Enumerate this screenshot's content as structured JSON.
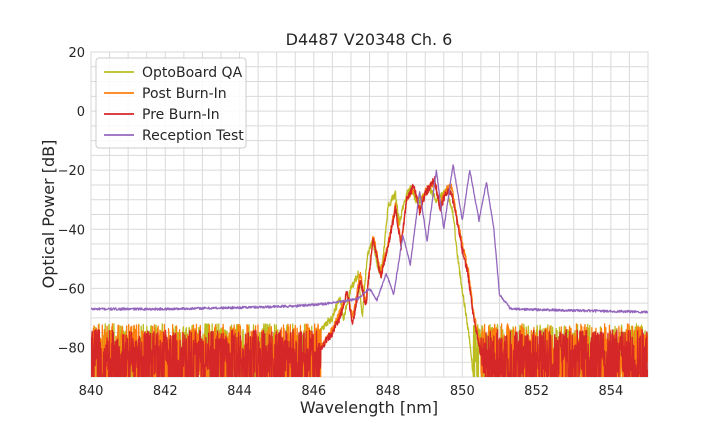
{
  "chart_data": {
    "type": "line",
    "title": "D4487 V20348 Ch. 6",
    "xlabel": "Wavelength [nm]",
    "ylabel": "Optical Power [dB]",
    "xlim": [
      840,
      855
    ],
    "ylim": [
      -90,
      20
    ],
    "xticks": [
      "840",
      "842",
      "844",
      "846",
      "848",
      "850",
      "852",
      "854"
    ],
    "yticks": [
      "20",
      "0",
      "−20",
      "−40",
      "−60",
      "−80"
    ],
    "grid": true,
    "legend_position": "upper-left",
    "series": [
      {
        "name": "OptoBoard QA",
        "color": "#bcbd22",
        "noise_floor": [
          -87,
          -72
        ],
        "points": [
          [
            846.0,
            -78
          ],
          [
            846.3,
            -72
          ],
          [
            846.5,
            -70
          ],
          [
            846.7,
            -63
          ],
          [
            846.8,
            -70
          ],
          [
            847.0,
            -60
          ],
          [
            847.2,
            -55
          ],
          [
            847.3,
            -70
          ],
          [
            847.45,
            -48
          ],
          [
            847.6,
            -44
          ],
          [
            847.75,
            -55
          ],
          [
            847.85,
            -52
          ],
          [
            848.0,
            -32
          ],
          [
            848.2,
            -28
          ],
          [
            848.3,
            -38
          ],
          [
            848.45,
            -30
          ],
          [
            848.6,
            -26
          ],
          [
            848.8,
            -31
          ],
          [
            848.95,
            -29
          ],
          [
            849.1,
            -26
          ],
          [
            849.3,
            -30
          ],
          [
            849.45,
            -28
          ],
          [
            849.6,
            -27
          ],
          [
            849.75,
            -35
          ],
          [
            849.9,
            -52
          ],
          [
            850.05,
            -65
          ],
          [
            850.2,
            -78
          ],
          [
            850.3,
            -90
          ]
        ]
      },
      {
        "name": "Post Burn-In",
        "color": "#ff7f0e",
        "noise_floor": [
          -90,
          -72
        ],
        "points": [
          [
            846.2,
            -80
          ],
          [
            846.5,
            -74
          ],
          [
            846.7,
            -68
          ],
          [
            846.9,
            -62
          ],
          [
            847.05,
            -70
          ],
          [
            847.25,
            -55
          ],
          [
            847.4,
            -65
          ],
          [
            847.6,
            -42
          ],
          [
            847.8,
            -55
          ],
          [
            848.0,
            -45
          ],
          [
            848.2,
            -32
          ],
          [
            848.35,
            -45
          ],
          [
            848.5,
            -30
          ],
          [
            848.7,
            -26
          ],
          [
            848.85,
            -33
          ],
          [
            849.0,
            -27
          ],
          [
            849.25,
            -24
          ],
          [
            849.4,
            -32
          ],
          [
            849.55,
            -27
          ],
          [
            849.7,
            -25
          ],
          [
            849.85,
            -36
          ],
          [
            850.0,
            -45
          ],
          [
            850.15,
            -53
          ],
          [
            850.3,
            -68
          ],
          [
            850.5,
            -80
          ]
        ]
      },
      {
        "name": "Pre Burn-In",
        "color": "#d62728",
        "noise_floor": [
          -90,
          -74
        ],
        "points": [
          [
            846.2,
            -80
          ],
          [
            846.5,
            -75
          ],
          [
            846.7,
            -70
          ],
          [
            846.9,
            -61
          ],
          [
            847.05,
            -72
          ],
          [
            847.25,
            -57
          ],
          [
            847.4,
            -66
          ],
          [
            847.6,
            -43
          ],
          [
            847.8,
            -56
          ],
          [
            848.0,
            -46
          ],
          [
            848.2,
            -33
          ],
          [
            848.35,
            -46
          ],
          [
            848.5,
            -30
          ],
          [
            848.7,
            -25
          ],
          [
            848.85,
            -34
          ],
          [
            849.0,
            -28
          ],
          [
            849.25,
            -23
          ],
          [
            849.4,
            -33
          ],
          [
            849.55,
            -28
          ],
          [
            849.7,
            -27
          ],
          [
            849.85,
            -37
          ],
          [
            850.0,
            -47
          ],
          [
            850.15,
            -55
          ],
          [
            850.3,
            -70
          ],
          [
            850.5,
            -82
          ]
        ]
      },
      {
        "name": "Reception Test",
        "color": "#9467bd",
        "points": [
          [
            840.0,
            -67
          ],
          [
            842.0,
            -67
          ],
          [
            844.0,
            -66.5
          ],
          [
            845.5,
            -66
          ],
          [
            846.5,
            -65
          ],
          [
            847.2,
            -63.5
          ],
          [
            847.5,
            -60
          ],
          [
            847.7,
            -64
          ],
          [
            847.95,
            -55
          ],
          [
            848.15,
            -62
          ],
          [
            848.4,
            -42
          ],
          [
            848.6,
            -52
          ],
          [
            848.85,
            -27
          ],
          [
            849.05,
            -44
          ],
          [
            849.3,
            -20
          ],
          [
            849.5,
            -40
          ],
          [
            849.75,
            -18
          ],
          [
            850.0,
            -37
          ],
          [
            850.2,
            -20
          ],
          [
            850.45,
            -37
          ],
          [
            850.65,
            -24
          ],
          [
            850.85,
            -40
          ],
          [
            851.0,
            -62
          ],
          [
            851.3,
            -67
          ],
          [
            853.0,
            -67.5
          ],
          [
            855.0,
            -68
          ]
        ]
      }
    ]
  }
}
